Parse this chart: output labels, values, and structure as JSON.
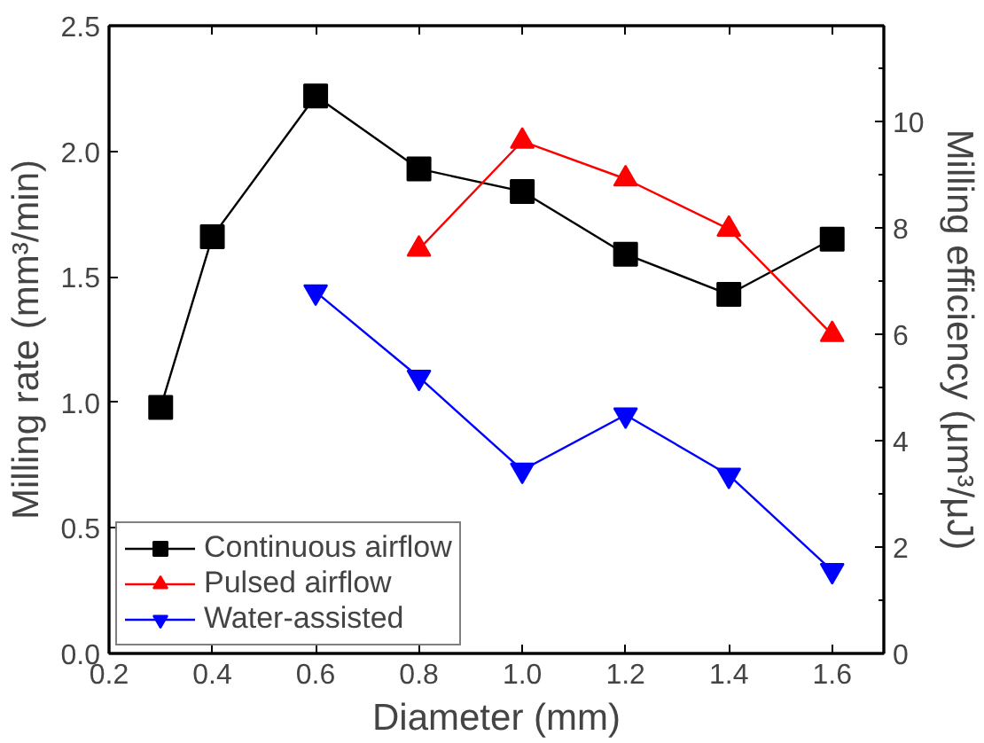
{
  "chart_data": {
    "type": "line",
    "xlabel": "Diameter (mm)",
    "ylabel": "Milling rate (mm³/min)",
    "y2label": "Milling efficiency (μm³/μJ)",
    "xlim": [
      0.2,
      1.7
    ],
    "xticks": [
      0.2,
      0.4,
      0.6,
      0.8,
      {
        "value": 1,
        "label": "1.0"
      },
      1.2,
      1.4,
      1.6
    ],
    "ylim": [
      0,
      2.5
    ],
    "yticks": [
      {
        "value": 0,
        "label": "0.0"
      },
      0.5,
      {
        "value": 1,
        "label": "1.0"
      },
      1.5,
      {
        "value": 2,
        "label": "2.0"
      },
      2.5
    ],
    "y2lim": [
      0,
      11.8
    ],
    "y2ticks": [
      0,
      2,
      4,
      6,
      8,
      10
    ],
    "grid": false,
    "legend": "bottom left",
    "line_style": "solid",
    "series": [
      {
        "name": "Continuous airflow",
        "color": "#000000",
        "marker": "square",
        "x": [
          0.3,
          0.4,
          0.6,
          0.8,
          1.0,
          1.2,
          1.4,
          1.6
        ],
        "values": [
          0.98,
          1.66,
          2.22,
          1.93,
          1.84,
          1.59,
          1.43,
          1.65
        ]
      },
      {
        "name": "Pulsed airflow",
        "color": "#ff0000",
        "marker": "triangle",
        "x": [
          0.8,
          1.0,
          1.2,
          1.4,
          1.6
        ],
        "values": [
          1.61,
          2.04,
          1.89,
          1.69,
          1.27
        ]
      },
      {
        "name": "Water-assisted",
        "color": "#0000ff",
        "marker": "triangle",
        "x": [
          0.6,
          0.8,
          1.0,
          1.2,
          1.4,
          1.6
        ],
        "values": [
          1.44,
          1.1,
          0.73,
          0.95,
          0.71,
          0.33
        ]
      }
    ]
  }
}
